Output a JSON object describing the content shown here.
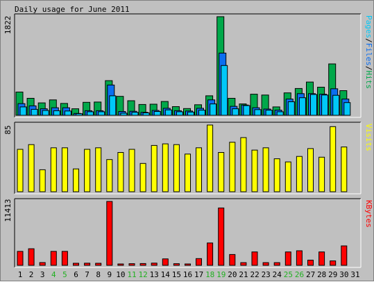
{
  "title": "Daily usage for June 2011",
  "colors": {
    "hits": "#00a84a",
    "files": "#0b6ef0",
    "pages": "#00c8f8",
    "visits": "#ffff00",
    "kbytes": "#ff0000",
    "weekend_day": "#20b020",
    "weekday_day": "#000000",
    "panel_bg": "#c0c0c0"
  },
  "chart_data": [
    {
      "type": "bar",
      "panel": "hits-files-pages",
      "ylabel": "1822",
      "ymax": 1822,
      "legend": [
        {
          "text": "Pages",
          "color": "#00c8f8"
        },
        {
          "text": "/",
          "color": "#000000"
        },
        {
          "text": "Files",
          "color": "#0b6ef0"
        },
        {
          "text": "/",
          "color": "#000000"
        },
        {
          "text": "Hits",
          "color": "#00a84a"
        }
      ],
      "categories": [
        "1",
        "2",
        "3",
        "4",
        "5",
        "6",
        "7",
        "8",
        "9",
        "10",
        "11",
        "12",
        "13",
        "14",
        "15",
        "16",
        "17",
        "18",
        "19",
        "20",
        "21",
        "22",
        "23",
        "24",
        "25",
        "26",
        "27",
        "28",
        "29",
        "30",
        "31"
      ],
      "series": [
        {
          "name": "Hits",
          "values": [
            430,
            315,
            230,
            285,
            220,
            120,
            240,
            245,
            640,
            350,
            270,
            200,
            205,
            255,
            160,
            125,
            195,
            360,
            1822,
            315,
            210,
            390,
            375,
            155,
            415,
            495,
            615,
            520,
            950,
            455,
            0
          ]
        },
        {
          "name": "Files",
          "values": [
            215,
            175,
            120,
            140,
            140,
            35,
            85,
            85,
            560,
            70,
            75,
            55,
            90,
            130,
            85,
            80,
            130,
            285,
            1150,
            165,
            190,
            140,
            115,
            95,
            300,
            400,
            400,
            390,
            490,
            300,
            0
          ]
        },
        {
          "name": "Pages",
          "values": [
            155,
            110,
            90,
            85,
            80,
            30,
            65,
            65,
            360,
            40,
            55,
            45,
            70,
            100,
            65,
            60,
            95,
            210,
            920,
            120,
            180,
            105,
            95,
            65,
            250,
            325,
            385,
            375,
            370,
            235,
            0
          ]
        }
      ]
    },
    {
      "type": "bar",
      "panel": "visits",
      "ylabel": "85",
      "ymax": 85,
      "legend": [
        {
          "text": "Visits",
          "color": "#ffff00"
        }
      ],
      "categories": [
        "1",
        "2",
        "3",
        "4",
        "5",
        "6",
        "7",
        "8",
        "9",
        "10",
        "11",
        "12",
        "13",
        "14",
        "15",
        "16",
        "17",
        "18",
        "19",
        "20",
        "21",
        "22",
        "23",
        "24",
        "25",
        "26",
        "27",
        "28",
        "29",
        "30",
        "31"
      ],
      "series": [
        {
          "name": "Visits",
          "values": [
            54,
            60,
            28,
            56,
            56,
            29,
            54,
            56,
            41,
            50,
            54,
            36,
            59,
            61,
            60,
            48,
            56,
            85,
            50,
            63,
            69,
            53,
            56,
            42,
            38,
            45,
            55,
            44,
            83,
            57,
            0
          ]
        }
      ]
    },
    {
      "type": "bar",
      "panel": "kbytes",
      "ylabel": "11413",
      "ymax": 11413,
      "legend": [
        {
          "text": "KBytes",
          "color": "#ff0000"
        }
      ],
      "categories": [
        "1",
        "2",
        "3",
        "4",
        "5",
        "6",
        "7",
        "8",
        "9",
        "10",
        "11",
        "12",
        "13",
        "14",
        "15",
        "16",
        "17",
        "18",
        "19",
        "20",
        "21",
        "22",
        "23",
        "24",
        "25",
        "26",
        "27",
        "28",
        "29",
        "30",
        "31"
      ],
      "series": [
        {
          "name": "KBytes",
          "values": [
            2490,
            2960,
            500,
            2490,
            2490,
            370,
            390,
            370,
            11413,
            250,
            300,
            320,
            400,
            1150,
            300,
            250,
            1200,
            4000,
            10250,
            1930,
            480,
            2390,
            480,
            480,
            2390,
            2600,
            930,
            2390,
            800,
            3470,
            0
          ]
        }
      ]
    }
  ],
  "x_axis": {
    "days": [
      "1",
      "2",
      "3",
      "4",
      "5",
      "6",
      "7",
      "8",
      "9",
      "10",
      "11",
      "12",
      "13",
      "14",
      "15",
      "16",
      "17",
      "18",
      "19",
      "20",
      "21",
      "22",
      "23",
      "24",
      "25",
      "26",
      "27",
      "28",
      "29",
      "30",
      "31"
    ],
    "weekend": [
      4,
      5,
      11,
      12,
      18,
      19,
      25,
      26
    ]
  }
}
